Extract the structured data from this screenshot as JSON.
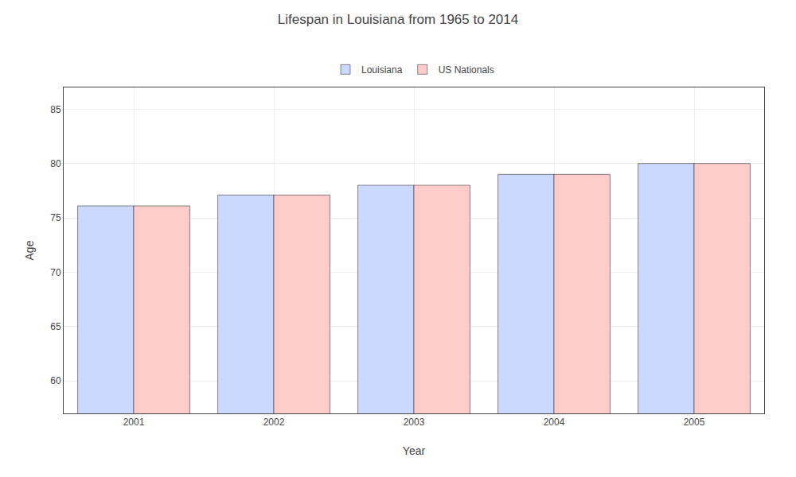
{
  "chart_data": {
    "type": "bar",
    "title": "Lifespan in Louisiana from 1965 to 2014",
    "x_label": "Year",
    "y_label": "Age",
    "categories": [
      "2001",
      "2002",
      "2003",
      "2004",
      "2005"
    ],
    "series": [
      {
        "name": "Louisiana",
        "color": "#ccd9ff",
        "values": [
          76.1,
          77.1,
          78.0,
          79.0,
          80.0
        ]
      },
      {
        "name": "US Nationals",
        "color": "#ffcccc",
        "values": [
          76.1,
          77.1,
          78.0,
          79.0,
          80.0
        ]
      }
    ],
    "ylim": [
      57,
      87
    ],
    "yticks": [
      60,
      65,
      70,
      75,
      80,
      85
    ],
    "grid": true,
    "legend": "top"
  }
}
